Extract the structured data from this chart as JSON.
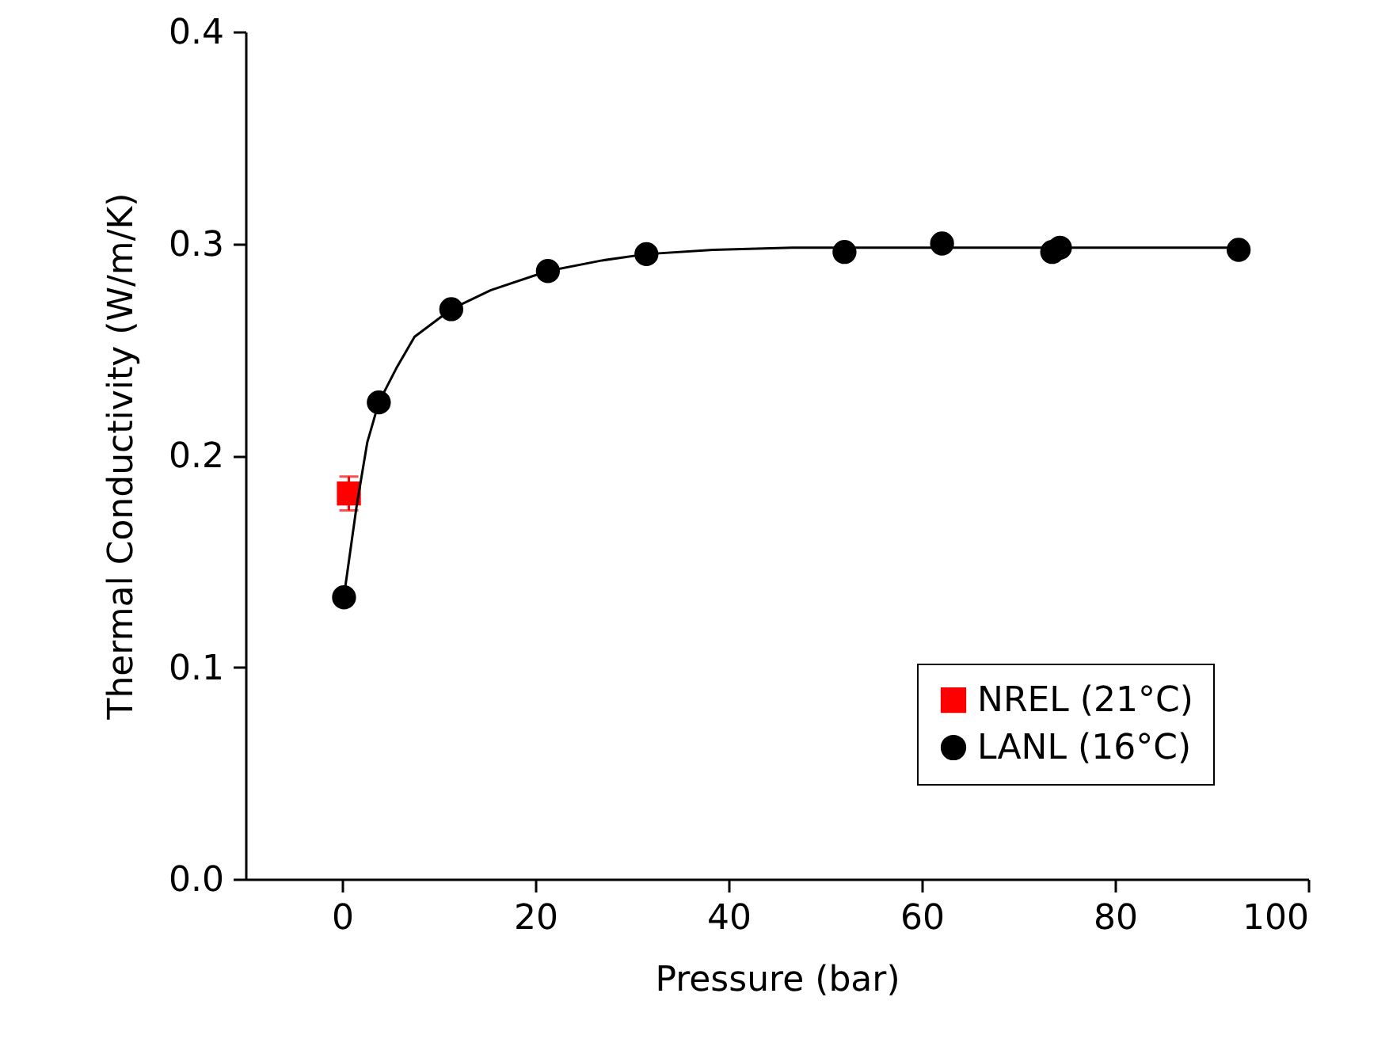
{
  "chart_data": {
    "type": "scatter",
    "xlabel": "Pressure (bar)",
    "ylabel": "Thermal Conductivity (W/m/K)",
    "xlim": [
      -10,
      100
    ],
    "xticks": [
      0,
      20,
      40,
      60,
      80,
      100
    ],
    "ylim": [
      0,
      0.4
    ],
    "yticks": [
      {
        "value": 0,
        "label": "0.0"
      },
      0.1,
      0.2,
      0.3,
      0.4
    ],
    "grid": false,
    "legend": "bottom right",
    "series": [
      {
        "name": "NREL (21°C)",
        "color": "#ff0000",
        "marker": "square",
        "x": [
          0.7
        ],
        "values": [
          0.182
        ],
        "errors": [
          0.008
        ]
      },
      {
        "name": "LANL (16°C)",
        "color": "#000000",
        "marker": "circle",
        "x": [
          0.2,
          3.8,
          11.3,
          21.3,
          31.5,
          52,
          62.1,
          73.5,
          74.3,
          92.8
        ],
        "values": [
          0.133,
          0.225,
          0.269,
          0.287,
          0.295,
          0.296,
          0.3,
          0.296,
          0.298,
          0.297
        ]
      },
      {
        "type": "line",
        "color": "#000000",
        "marker": "none",
        "line_style": "solid",
        "x": [
          0.3,
          1.5,
          2.6,
          3.8,
          5.6,
          7.5,
          11.3,
          15.4,
          21.3,
          26.9,
          31.5,
          38.4,
          46.6,
          56.4,
          71.1,
          92.8
        ],
        "values": [
          0.137,
          0.176,
          0.206,
          0.225,
          0.241,
          0.256,
          0.269,
          0.278,
          0.287,
          0.292,
          0.295,
          0.297,
          0.298,
          0.298,
          0.298,
          0.298
        ]
      }
    ]
  }
}
